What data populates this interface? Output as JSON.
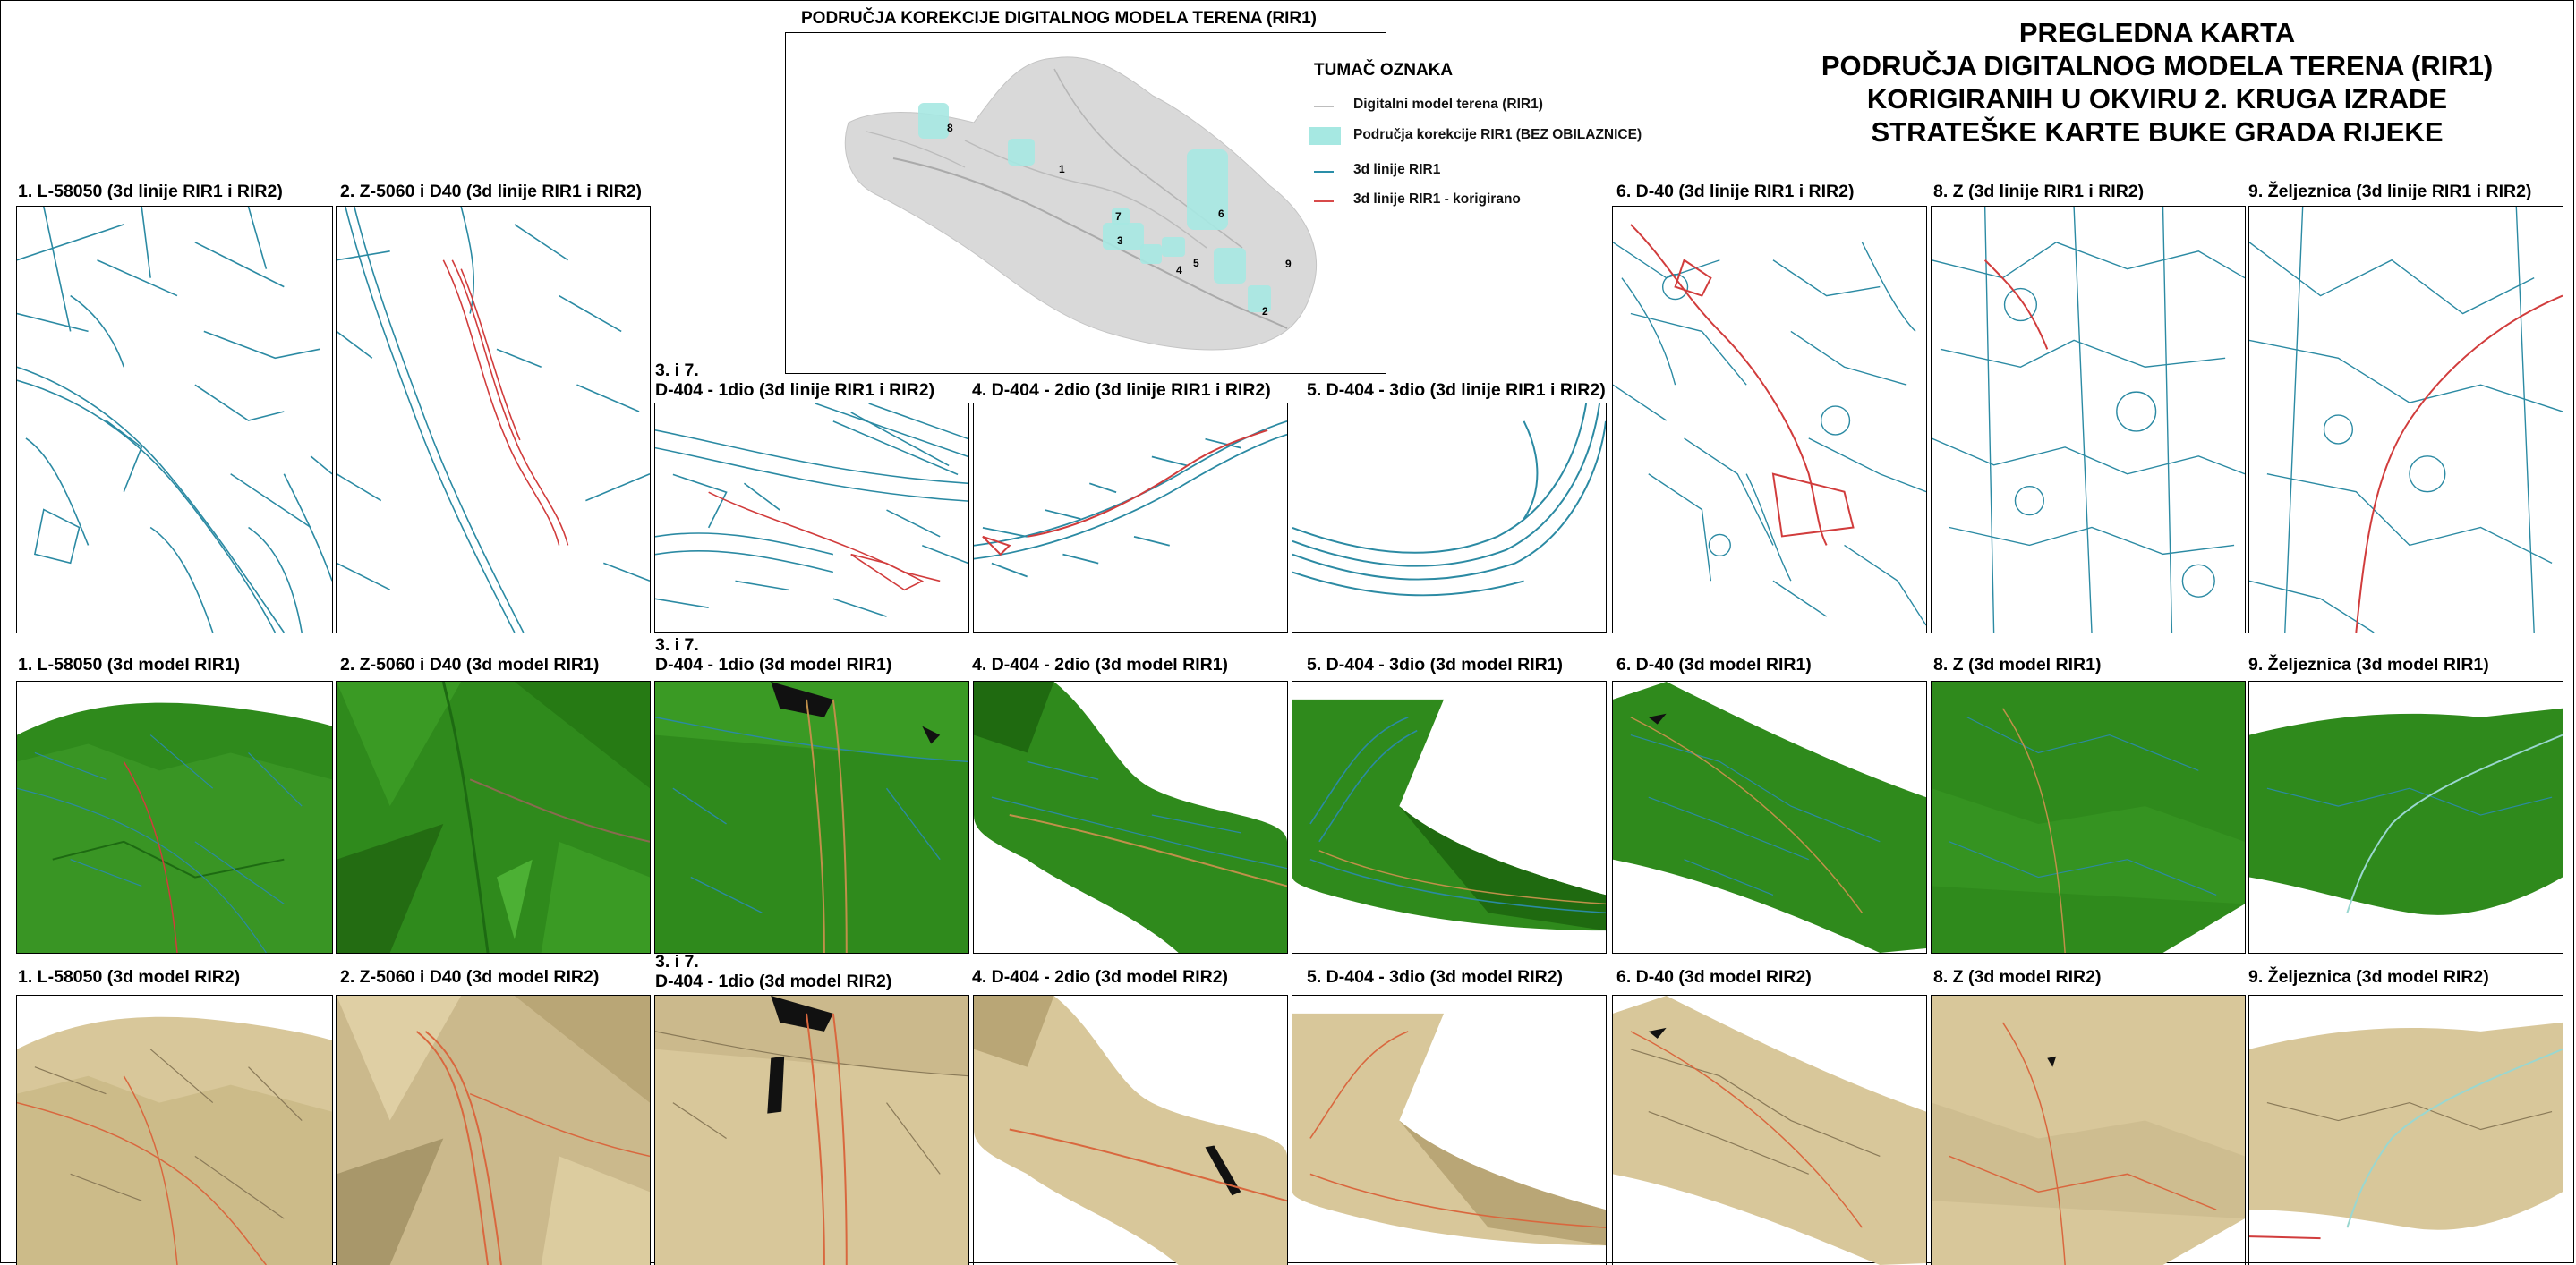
{
  "title": {
    "line1": "PREGLEDNA KARTA",
    "line2": "PODRUČJA DIGITALNOG MODELA TERENA (RIR1)",
    "line3": "KORIGIRANIH U OKVIRU 2. KRUGA IZRADE",
    "line4": "STRATEŠKE KARTE BUKE GRADA RIJEKE"
  },
  "overview": {
    "title": "PODRUČJA KOREKCIJE DIGITALNOG MODELA TERENA (RIR1)",
    "zone_labels": [
      "1",
      "2",
      "3",
      "4",
      "5",
      "6",
      "7",
      "8",
      "9"
    ]
  },
  "legend": {
    "title": "TUMAČ OZNAKA",
    "items": [
      {
        "label": "Digitalni model terena (RIR1)",
        "color": "#bdbdbd"
      },
      {
        "label": "Područja korekcije RIR1 (BEZ OBILAZNICE)",
        "color": "#a6e8e2"
      },
      {
        "label": "3d linije RIR1",
        "color": "#2a8ea8"
      },
      {
        "label": "3d linije RIR1 - korigirano",
        "color": "#d84a4a"
      }
    ]
  },
  "colors": {
    "line_blue": "#2b8aa3",
    "line_red": "#d13c3c",
    "terrain_green": "#2f8a1c",
    "terrain_tan": "#d8c79a"
  },
  "row1": {
    "labels": [
      "1. L-58050 (3d linije RIR1 i RIR2)",
      "2. Z-5060 i D40 (3d linije RIR1 i RIR2)",
      "3. i 7.",
      "D-404 - 1dio (3d linije RIR1 i RIR2)",
      "4. D-404 - 2dio (3d linije RIR1 i RIR2)",
      "5. D-404 - 3dio (3d linije RIR1 i RIR2)",
      "6. D-40 (3d linije RIR1 i RIR2)",
      "8. Z (3d linije RIR1 i RIR2)",
      "9. Željeznica (3d linije RIR1 i RIR2)"
    ]
  },
  "row2": {
    "labels": [
      "1. L-58050 (3d model RIR1)",
      "2. Z-5060 i D40 (3d model RIR1)",
      "3. i 7.",
      "D-404 - 1dio (3d model RIR1)",
      "4. D-404 - 2dio (3d model RIR1)",
      "5. D-404 - 3dio (3d model RIR1)",
      "6. D-40 (3d model RIR1)",
      "8. Z (3d model RIR1)",
      "9. Željeznica (3d model RIR1)"
    ]
  },
  "row3": {
    "labels": [
      "1. L-58050 (3d model RIR2)",
      "2. Z-5060 i D40 (3d model RIR2)",
      "3. i 7.",
      "D-404 - 1dio (3d model RIR2)",
      "4. D-404 - 2dio (3d model RIR2)",
      "5. D-404 - 3dio (3d model RIR2)",
      "6. D-40 (3d model RIR2)",
      "8. Z (3d model RIR2)",
      "9. Željeznica (3d model RIR2)"
    ]
  }
}
